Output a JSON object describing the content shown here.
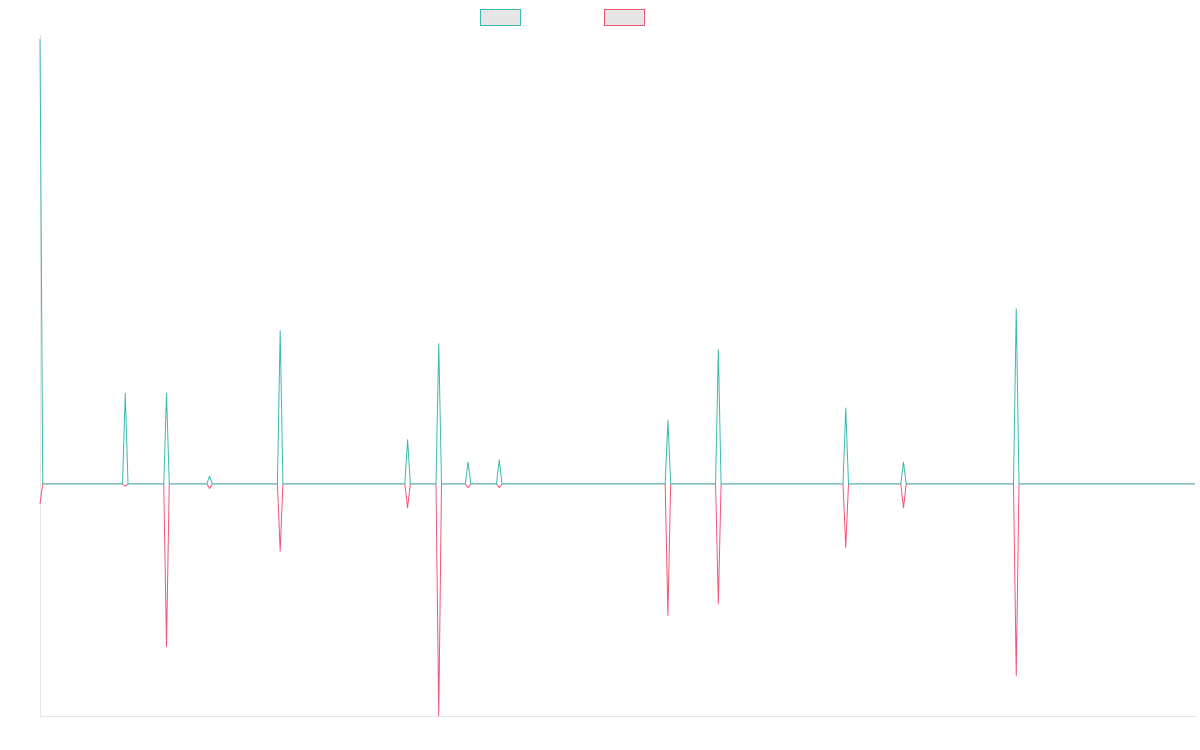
{
  "chart_data": {
    "type": "line",
    "title": "",
    "xlabel": "",
    "ylabel": "",
    "grid": false,
    "legend": "top-center",
    "ylim": [
      -3.0,
      5.8
    ],
    "xlim": [
      0,
      126
    ],
    "series": [
      {
        "color": "#3cbab0",
        "swatch_fill": "#e6e6e6",
        "points": [
          [
            0,
            5.75
          ],
          [
            0.3,
            0
          ],
          [
            9,
            0
          ],
          [
            9.3,
            1.17
          ],
          [
            9.6,
            0
          ],
          [
            13.5,
            0
          ],
          [
            13.8,
            1.17
          ],
          [
            14.1,
            0
          ],
          [
            18.2,
            0
          ],
          [
            18.5,
            0.1
          ],
          [
            18.8,
            0
          ],
          [
            25.9,
            0
          ],
          [
            26.2,
            1.98
          ],
          [
            26.5,
            0
          ],
          [
            39.8,
            0
          ],
          [
            40.1,
            0.57
          ],
          [
            40.4,
            0
          ],
          [
            43.2,
            0
          ],
          [
            43.5,
            1.81
          ],
          [
            43.8,
            0
          ],
          [
            46.4,
            0
          ],
          [
            46.7,
            0.28
          ],
          [
            47.0,
            0
          ],
          [
            49.8,
            0
          ],
          [
            50.1,
            0.31
          ],
          [
            50.4,
            0
          ],
          [
            68.2,
            0
          ],
          [
            68.5,
            0.82
          ],
          [
            68.8,
            0
          ],
          [
            73.7,
            0
          ],
          [
            74.0,
            1.73
          ],
          [
            74.3,
            0
          ],
          [
            87.6,
            0
          ],
          [
            87.9,
            0.98
          ],
          [
            88.2,
            0
          ],
          [
            93.9,
            0
          ],
          [
            94.2,
            0.28
          ],
          [
            94.5,
            0
          ],
          [
            106.2,
            0
          ],
          [
            106.5,
            2.26
          ],
          [
            106.8,
            0
          ],
          [
            126,
            0
          ]
        ]
      },
      {
        "color": "#f0557a",
        "swatch_fill": "#e6e6e6",
        "points": [
          [
            0,
            -0.26
          ],
          [
            0.3,
            0
          ],
          [
            9,
            0
          ],
          [
            9.3,
            -0.03
          ],
          [
            9.6,
            0
          ],
          [
            13.5,
            0
          ],
          [
            13.8,
            -2.1
          ],
          [
            14.1,
            0
          ],
          [
            18.2,
            0
          ],
          [
            18.5,
            -0.06
          ],
          [
            18.8,
            0
          ],
          [
            25.9,
            0
          ],
          [
            26.2,
            -0.87
          ],
          [
            26.5,
            0
          ],
          [
            39.8,
            0
          ],
          [
            40.1,
            -0.31
          ],
          [
            40.4,
            0
          ],
          [
            43.2,
            0
          ],
          [
            43.5,
            -3.0
          ],
          [
            43.8,
            0
          ],
          [
            46.4,
            0
          ],
          [
            46.7,
            -0.05
          ],
          [
            47.0,
            0
          ],
          [
            49.8,
            0
          ],
          [
            50.1,
            -0.05
          ],
          [
            50.4,
            0
          ],
          [
            68.2,
            0
          ],
          [
            68.5,
            -1.7
          ],
          [
            68.8,
            0
          ],
          [
            73.7,
            0
          ],
          [
            74.0,
            -1.55
          ],
          [
            74.3,
            0
          ],
          [
            87.6,
            0
          ],
          [
            87.9,
            -0.82
          ],
          [
            88.2,
            0
          ],
          [
            93.9,
            0
          ],
          [
            94.2,
            -0.31
          ],
          [
            94.5,
            0
          ],
          [
            106.2,
            0
          ],
          [
            106.5,
            -2.48
          ],
          [
            106.8,
            0
          ],
          [
            126,
            0
          ]
        ]
      }
    ]
  }
}
